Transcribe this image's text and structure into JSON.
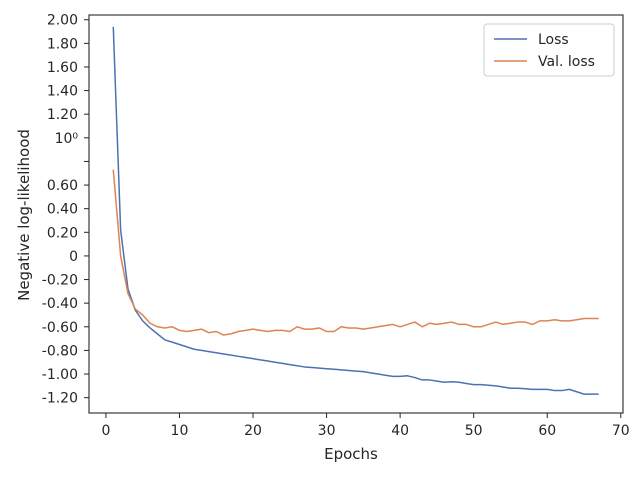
{
  "chart_data": {
    "type": "line",
    "title": "",
    "xlabel": "Epochs",
    "ylabel": "Negative log-likelihood",
    "xlim": [
      -2.3,
      70.3
    ],
    "ylim": [
      -1.33,
      2.04
    ],
    "xticks": [
      0,
      10,
      20,
      30,
      40,
      50,
      60,
      70
    ],
    "xtick_labels": [
      "0",
      "10",
      "20",
      "30",
      "40",
      "50",
      "60",
      "70"
    ],
    "yticks": [
      2.0,
      1.8,
      1.6,
      1.4,
      1.2,
      1.0,
      0.8,
      0.6,
      0.4,
      0.2,
      0.0,
      -0.2,
      -0.4,
      -0.6,
      -0.8,
      -1.0,
      -1.2
    ],
    "ytick_labels": [
      "2.00",
      "1.80",
      "1.60",
      "1.40",
      "1.20",
      "10⁰",
      "0.60",
      "0.40",
      "0.20",
      "0",
      "-0.20",
      "-0.40",
      "-0.60",
      "-0.80",
      "-1.00",
      "-1.20"
    ],
    "ytick_label_values": [
      2.0,
      1.8,
      1.6,
      1.4,
      1.2,
      1.0,
      0.6,
      0.4,
      0.2,
      0.0,
      -0.2,
      -0.4,
      -0.6,
      -0.8,
      -1.0,
      -1.2
    ],
    "grid": false,
    "legend_position": "top-right",
    "x": [
      1,
      2,
      3,
      4,
      5,
      6,
      7,
      8,
      9,
      10,
      11,
      12,
      13,
      14,
      15,
      16,
      17,
      18,
      19,
      20,
      21,
      22,
      23,
      24,
      25,
      26,
      27,
      28,
      29,
      30,
      31,
      32,
      33,
      34,
      35,
      36,
      37,
      38,
      39,
      40,
      41,
      42,
      43,
      44,
      45,
      46,
      47,
      48,
      49,
      50,
      51,
      52,
      53,
      54,
      55,
      56,
      57,
      58,
      59,
      60,
      61,
      62,
      63,
      64,
      65,
      66,
      67
    ],
    "series": [
      {
        "name": "Loss",
        "color": "#4c72b0",
        "values": [
          1.94,
          0.22,
          -0.28,
          -0.46,
          -0.55,
          -0.61,
          -0.66,
          -0.71,
          -0.73,
          -0.75,
          -0.77,
          -0.79,
          -0.8,
          -0.81,
          -0.82,
          -0.83,
          -0.84,
          -0.85,
          -0.86,
          -0.87,
          -0.88,
          -0.89,
          -0.9,
          -0.91,
          -0.92,
          -0.93,
          -0.94,
          -0.945,
          -0.95,
          -0.955,
          -0.96,
          -0.965,
          -0.97,
          -0.975,
          -0.98,
          -0.99,
          -1.0,
          -1.01,
          -1.02,
          -1.02,
          -1.015,
          -1.03,
          -1.05,
          -1.05,
          -1.06,
          -1.07,
          -1.065,
          -1.07,
          -1.08,
          -1.09,
          -1.09,
          -1.095,
          -1.1,
          -1.11,
          -1.12,
          -1.12,
          -1.125,
          -1.13,
          -1.13,
          -1.13,
          -1.14,
          -1.14,
          -1.13,
          -1.15,
          -1.17,
          -1.17,
          -1.17
        ]
      },
      {
        "name": "Val. loss",
        "color": "#dd8452",
        "values": [
          0.73,
          0.0,
          -0.32,
          -0.45,
          -0.5,
          -0.57,
          -0.6,
          -0.61,
          -0.6,
          -0.63,
          -0.64,
          -0.63,
          -0.62,
          -0.65,
          -0.64,
          -0.67,
          -0.66,
          -0.64,
          -0.63,
          -0.62,
          -0.63,
          -0.64,
          -0.63,
          -0.63,
          -0.64,
          -0.6,
          -0.62,
          -0.62,
          -0.61,
          -0.64,
          -0.64,
          -0.6,
          -0.61,
          -0.61,
          -0.62,
          -0.61,
          -0.6,
          -0.59,
          -0.58,
          -0.6,
          -0.58,
          -0.56,
          -0.6,
          -0.57,
          -0.58,
          -0.57,
          -0.56,
          -0.58,
          -0.58,
          -0.6,
          -0.6,
          -0.58,
          -0.56,
          -0.58,
          -0.57,
          -0.56,
          -0.56,
          -0.58,
          -0.55,
          -0.55,
          -0.54,
          -0.55,
          -0.55,
          -0.54,
          -0.53,
          -0.53,
          -0.53
        ]
      }
    ]
  }
}
